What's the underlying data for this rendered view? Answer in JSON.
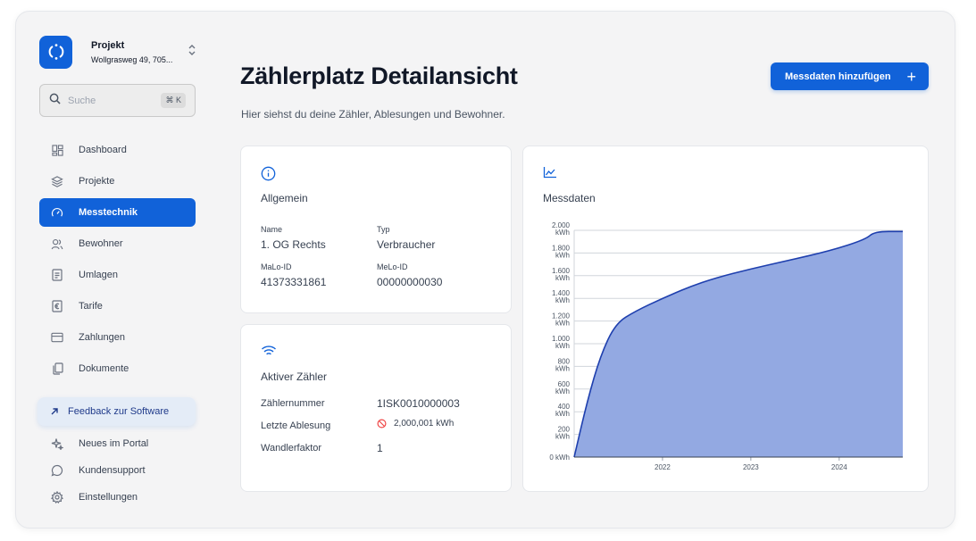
{
  "project": {
    "title": "Projekt",
    "address": "Wollgrasweg 49, 705..."
  },
  "search": {
    "placeholder": "Suche",
    "shortcut": "⌘ K"
  },
  "nav": {
    "items": [
      {
        "label": "Dashboard",
        "icon": "dashboard-icon"
      },
      {
        "label": "Projekte",
        "icon": "layers-icon"
      },
      {
        "label": "Messtechnik",
        "icon": "gauge-icon",
        "active": true
      },
      {
        "label": "Bewohner",
        "icon": "users-icon"
      },
      {
        "label": "Umlagen",
        "icon": "document-icon"
      },
      {
        "label": "Tarife",
        "icon": "euro-icon"
      },
      {
        "label": "Zahlungen",
        "icon": "credit-card-icon"
      },
      {
        "label": "Dokumente",
        "icon": "files-icon"
      }
    ],
    "feedback": "Feedback zur Software",
    "bottom": [
      {
        "label": "Neues im Portal",
        "icon": "sparkle-icon"
      },
      {
        "label": "Kundensupport",
        "icon": "chat-icon"
      },
      {
        "label": "Einstellungen",
        "icon": "gear-icon"
      }
    ]
  },
  "header": {
    "title": "Zählerplatz Detailansicht",
    "subtitle": "Hier siehst du deine Zähler, Ablesungen und Bewohner.",
    "add_button": "Messdaten hinzufügen"
  },
  "general": {
    "title": "Allgemein",
    "fields": {
      "name_label": "Name",
      "name_value": "1. OG Rechts",
      "typ_label": "Typ",
      "typ_value": "Verbraucher",
      "malo_label": "MaLo-ID",
      "malo_value": "41373331861",
      "melo_label": "MeLo-ID",
      "melo_value": "00000000030"
    }
  },
  "meter": {
    "title": "Aktiver Zähler",
    "number_label": "Zählernummer",
    "number_value": "1ISK0010000003",
    "last_reading_label": "Letzte Ablesung",
    "last_reading_value": "2,000,001 kWh",
    "factor_label": "Wandlerfaktor",
    "factor_value": "1"
  },
  "chart_title": "Messdaten",
  "colors": {
    "accent": "#1162d9",
    "chart_fill": "#93a9e2",
    "chart_line": "#1e3fae"
  },
  "chart_data": {
    "type": "area",
    "title": "Messdaten",
    "unit": "kWh",
    "x_ticks": [
      "2022",
      "2023",
      "2024"
    ],
    "y_ticks": [
      "0 kWh",
      "200 kWh",
      "400 kWh",
      "600 kWh",
      "800 kWh",
      "1.000 kWh",
      "1.200 kWh",
      "1.400 kWh",
      "1.600 kWh",
      "1.800 kWh",
      "2.000 kWh"
    ],
    "ylim": [
      0,
      2000
    ],
    "xlim": [
      2021.0,
      2024.72
    ],
    "series": [
      {
        "x": [
          2021.0,
          2021.15,
          2021.3,
          2021.47,
          2021.7,
          2022.0,
          2022.3,
          2022.6,
          2023.0,
          2023.4,
          2023.9,
          2024.3,
          2024.4,
          2024.72
        ],
        "values": [
          0,
          500,
          900,
          1180,
          1290,
          1400,
          1500,
          1580,
          1660,
          1730,
          1820,
          1920,
          1990,
          1990
        ]
      }
    ]
  }
}
